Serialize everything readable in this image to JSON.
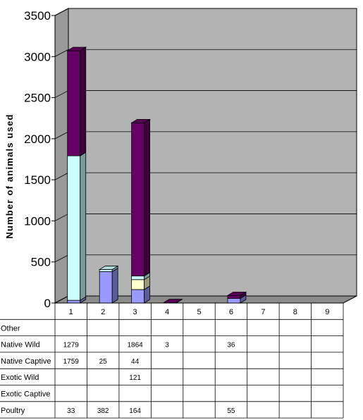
{
  "chart_data": {
    "type": "bar",
    "stacked": true,
    "three_d": true,
    "ylabel": "Number of animals used",
    "ylim": [
      0,
      3500
    ],
    "yticks": [
      0,
      500,
      1000,
      1500,
      2000,
      2500,
      3000,
      3500
    ],
    "categories": [
      "1",
      "2",
      "3",
      "4",
      "5",
      "6",
      "7",
      "8",
      "9"
    ],
    "grid": true,
    "legend": "data-table-below",
    "series": [
      {
        "name": "Poultry",
        "values": [
          33,
          382,
          164,
          null,
          null,
          55,
          null,
          null,
          null
        ],
        "color": "#9999ff"
      },
      {
        "name": "Exotic Captive",
        "values": [
          null,
          null,
          null,
          null,
          null,
          null,
          null,
          null,
          null
        ],
        "color": "#993366"
      },
      {
        "name": "Exotic Wild",
        "values": [
          null,
          null,
          121,
          null,
          null,
          null,
          null,
          null,
          null
        ],
        "color": "#ffffcc"
      },
      {
        "name": "Native Captive",
        "values": [
          1759,
          25,
          44,
          null,
          null,
          null,
          null,
          null,
          null
        ],
        "color": "#ccffff"
      },
      {
        "name": "Native Wild",
        "values": [
          1279,
          null,
          1864,
          3,
          null,
          36,
          null,
          null,
          null
        ],
        "color": "#660066"
      },
      {
        "name": "Other",
        "values": [
          null,
          null,
          null,
          null,
          null,
          null,
          null,
          null,
          null
        ],
        "color": "#ff8080"
      }
    ],
    "table_row_order": [
      "Other",
      "Native Wild",
      "Native Captive",
      "Exotic Wild",
      "Exotic Captive",
      "Poultry"
    ]
  },
  "colors": {
    "back_wall": "#b3b3b3",
    "side_wall": "#999999",
    "floor": "#8c8c8c",
    "gridline": "#000000"
  }
}
